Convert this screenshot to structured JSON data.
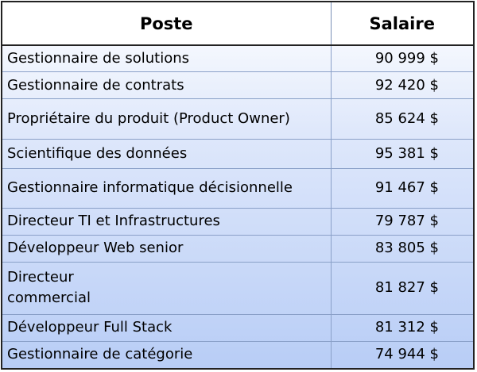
{
  "table": {
    "headers": {
      "poste": "Poste",
      "salaire": "Salaire"
    },
    "rows": [
      {
        "poste": "Gestionnaire de solutions",
        "salaire": "90 999 $"
      },
      {
        "poste": "Gestionnaire de contrats",
        "salaire": "92 420 $"
      },
      {
        "poste": "Propriétaire du produit (Product Owner)",
        "salaire": "85 624 $"
      },
      {
        "poste": "Scientifique des données",
        "salaire": "95 381 $"
      },
      {
        "poste": "Gestionnaire informatique décisionnelle",
        "salaire": "91 467 $"
      },
      {
        "poste": "Directeur TI et Infrastructures",
        "salaire": "79 787 $"
      },
      {
        "poste": "Développeur Web senior",
        "salaire": "83 805 $"
      },
      {
        "poste_line1": "Directeur",
        "poste_line2": "commercial",
        "salaire": "81 827 $"
      },
      {
        "poste": "Développeur Full Stack",
        "salaire": "81 312 $"
      },
      {
        "poste": "Gestionnaire de catégorie",
        "salaire": "74 944 $"
      }
    ]
  }
}
